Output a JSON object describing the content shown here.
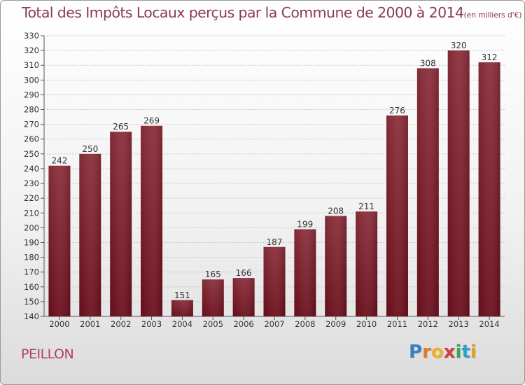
{
  "chart_data": {
    "type": "bar",
    "title": "Total des Impôts Locaux perçus par la Commune de 2000 à 2014",
    "unit_label": "(en milliers d'€)",
    "xlabel": "",
    "ylabel": "",
    "categories": [
      "2000",
      "2001",
      "2002",
      "2003",
      "2004",
      "2005",
      "2006",
      "2007",
      "2008",
      "2009",
      "2010",
      "2011",
      "2012",
      "2013",
      "2014"
    ],
    "values": [
      242,
      250,
      265,
      269,
      151,
      165,
      166,
      187,
      199,
      208,
      211,
      276,
      308,
      320,
      312
    ],
    "ylim": [
      140,
      330
    ],
    "yticks": [
      140,
      150,
      160,
      170,
      180,
      190,
      200,
      210,
      220,
      230,
      240,
      250,
      260,
      270,
      280,
      290,
      300,
      310,
      320,
      330
    ],
    "grid": true,
    "legend": "none",
    "bar_color": "#6b0f1c"
  },
  "commune": "PEILLON",
  "logo": {
    "letters": [
      "P",
      "r",
      "o",
      "x",
      "i",
      "t",
      "i"
    ],
    "colors": [
      "#3a7fc1",
      "#e07a2a",
      "#f0b020",
      "#d63a3a",
      "#3aa84a",
      "#2f9fd0",
      "#e0a020"
    ]
  }
}
